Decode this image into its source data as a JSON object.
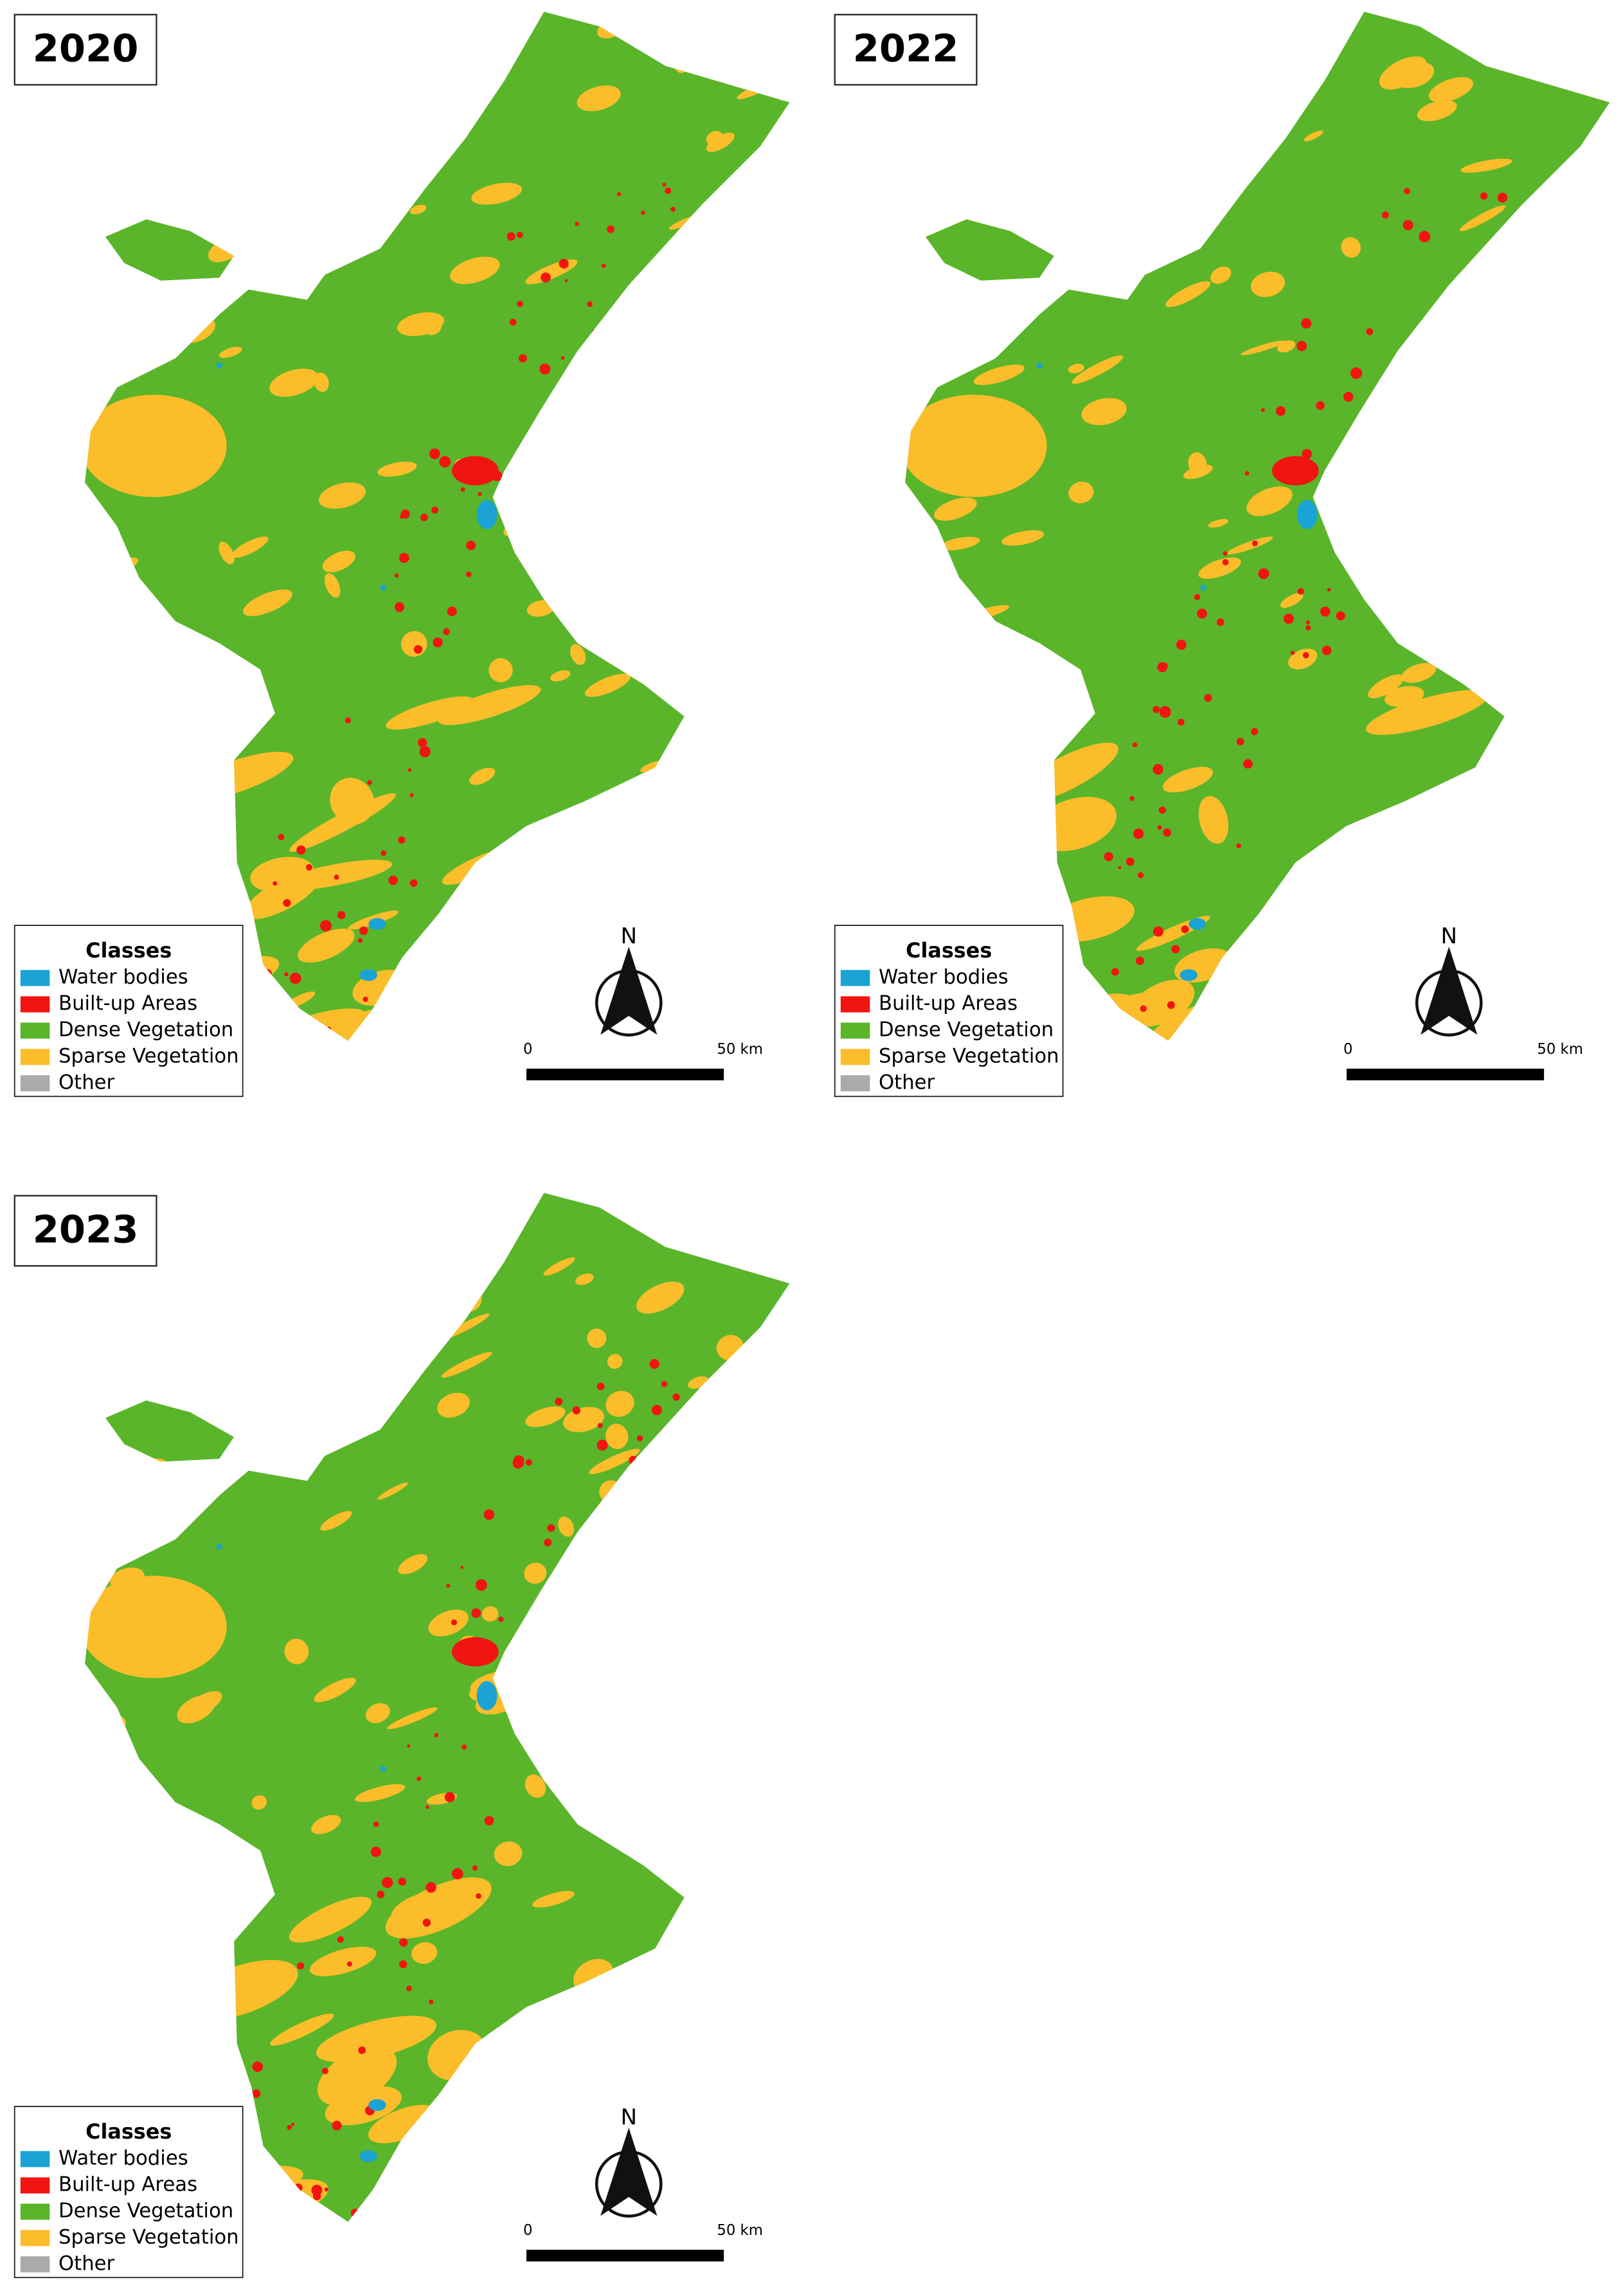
{
  "panels": [
    {
      "year": "2020",
      "legend": {
        "title": "Classes",
        "items": [
          {
            "label": "Water bodies",
            "color": "#1aa3d4"
          },
          {
            "label": "Built-up Areas",
            "color": "#f21410"
          },
          {
            "label": "Dense Vegetation",
            "color": "#5ab52a"
          },
          {
            "label": "Sparse Vegetation",
            "color": "#fbbd2a"
          },
          {
            "label": "Other",
            "color": "#aaaaaa"
          }
        ]
      },
      "north": "N",
      "scale": {
        "start": "0",
        "end": "50 km"
      }
    },
    {
      "year": "2022",
      "legend": {
        "title": "Classes",
        "items": [
          {
            "label": "Water bodies",
            "color": "#1aa3d4"
          },
          {
            "label": "Built-up Areas",
            "color": "#f21410"
          },
          {
            "label": "Dense Vegetation",
            "color": "#5ab52a"
          },
          {
            "label": "Sparse Vegetation",
            "color": "#fbbd2a"
          },
          {
            "label": "Other",
            "color": "#aaaaaa"
          }
        ]
      },
      "north": "N",
      "scale": {
        "start": "0",
        "end": "50 km"
      }
    },
    {
      "year": "2023",
      "legend": {
        "title": "Classes",
        "items": [
          {
            "label": "Water bodies",
            "color": "#1aa3d4"
          },
          {
            "label": "Built-up Areas",
            "color": "#f21410"
          },
          {
            "label": "Dense Vegetation",
            "color": "#5ab52a"
          },
          {
            "label": "Sparse Vegetation",
            "color": "#fbbd2a"
          },
          {
            "label": "Other",
            "color": "#aaaaaa"
          }
        ]
      },
      "north": "N",
      "scale": {
        "start": "0",
        "end": "50 km"
      }
    }
  ]
}
